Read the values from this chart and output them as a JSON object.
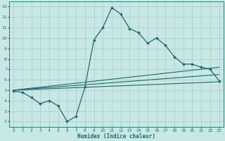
{
  "xlabel": "Humidex (Indice chaleur)",
  "background_color": "#c8e8e5",
  "grid_color": "#a8ccc8",
  "line_color": "#1a6b6b",
  "xlim": [
    -0.5,
    23.5
  ],
  "ylim": [
    1.5,
    13.5
  ],
  "xticks": [
    0,
    1,
    2,
    3,
    4,
    5,
    6,
    7,
    8,
    9,
    10,
    11,
    12,
    13,
    14,
    15,
    16,
    17,
    18,
    19,
    20,
    21,
    22,
    23
  ],
  "yticks": [
    2,
    3,
    4,
    5,
    6,
    7,
    8,
    9,
    10,
    11,
    12,
    13
  ],
  "line1_x": [
    0,
    1,
    2,
    3,
    4,
    5,
    6,
    7,
    8,
    9,
    10,
    11,
    12,
    13,
    14,
    15,
    16,
    17,
    18,
    19,
    20,
    21,
    22,
    23
  ],
  "line1_y": [
    4.9,
    4.8,
    4.3,
    3.7,
    4.0,
    3.5,
    2.0,
    2.5,
    5.3,
    9.8,
    11.0,
    12.9,
    12.3,
    10.9,
    10.5,
    9.5,
    10.0,
    9.3,
    8.2,
    7.5,
    7.5,
    7.2,
    7.0,
    5.9
  ],
  "line2_x": [
    0,
    23
  ],
  "line2_y": [
    5.0,
    7.2
  ],
  "line3_x": [
    0,
    23
  ],
  "line3_y": [
    5.0,
    6.5
  ],
  "line4_x": [
    0,
    23
  ],
  "line4_y": [
    5.0,
    5.8
  ]
}
